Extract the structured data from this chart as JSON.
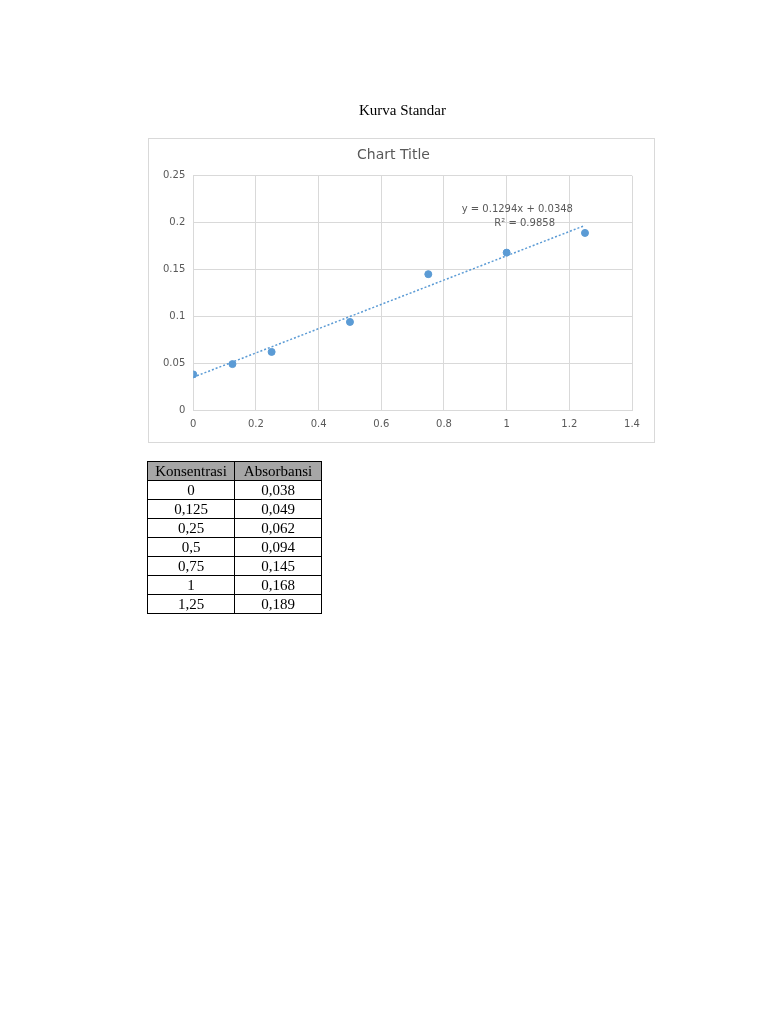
{
  "chart_data": [
    {
      "type": "scatter",
      "title": "Kurva Standar",
      "subtitle": "Chart Title",
      "x": [
        0,
        0.125,
        0.25,
        0.5,
        0.75,
        1,
        1.25
      ],
      "series": [
        {
          "type": "scatter",
          "color": "#5b9bd5",
          "values": [
            0.038,
            0.049,
            0.062,
            0.094,
            0.145,
            0.168,
            0.189
          ]
        },
        {
          "type": "line",
          "color": "#5b9bd5",
          "x": [
            0,
            1.25
          ],
          "values": [
            0.035,
            0.197
          ],
          "line_style": "dotted",
          "marker": "none"
        }
      ],
      "annotations": [
        "y = 0.1294x + 0.0348",
        "R² = 0.9858"
      ],
      "xlim": [
        0,
        1.4
      ],
      "xticks": [
        0,
        0.2,
        0.4,
        0.6,
        0.8,
        1,
        1.2,
        1.4
      ],
      "ylim": [
        0,
        0.25
      ],
      "yticks": [
        0,
        0.05,
        0.1,
        0.15,
        0.2,
        0.25
      ],
      "grid": true,
      "marker": "circle"
    },
    {
      "type": "other",
      "categories": [
        "Konsentrasi",
        "Absorbansi"
      ],
      "annotations": [
        "0",
        "0,038",
        "0,125",
        "0,049",
        "0,25",
        "0,062",
        "0,5",
        "0,094",
        "0,75",
        "0,145",
        "1",
        "0,168",
        "1,25",
        "0,189"
      ]
    }
  ]
}
